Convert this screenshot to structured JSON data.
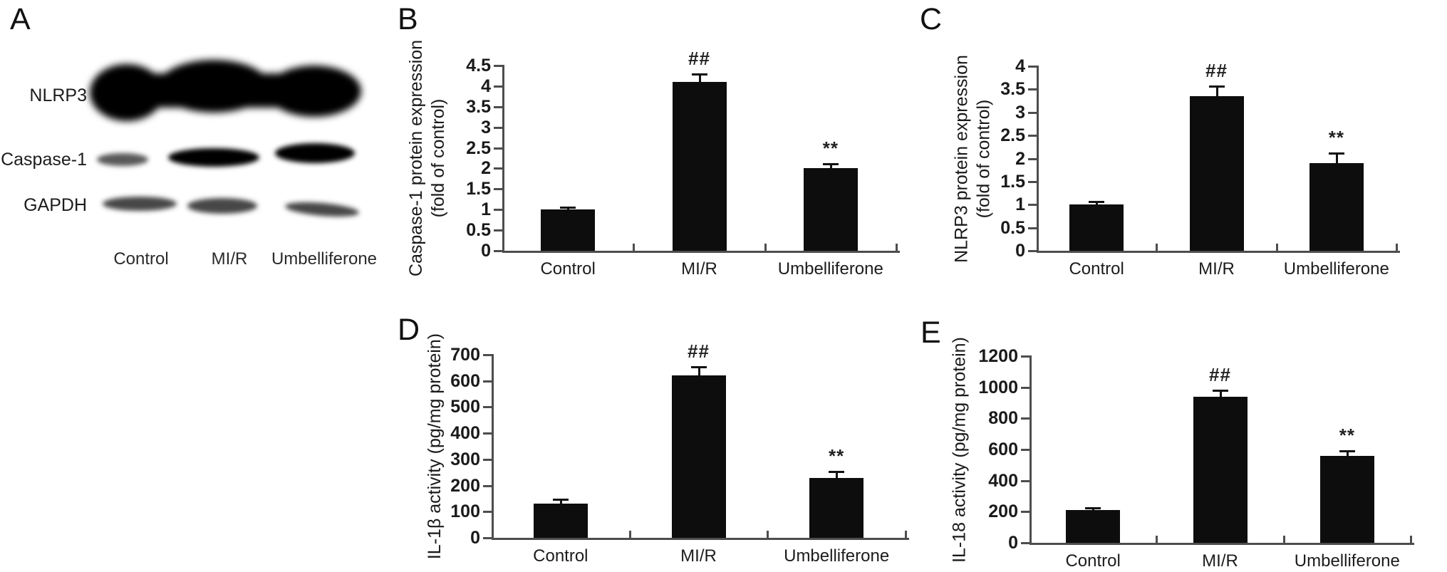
{
  "figure": {
    "background": "#ffffff",
    "panels": {
      "A": {
        "label": "A"
      },
      "B": {
        "label": "B"
      },
      "C": {
        "label": "C"
      },
      "D": {
        "label": "D"
      },
      "E": {
        "label": "E"
      }
    }
  },
  "colors": {
    "bar": "#0d0d0d",
    "axis": "#4d4d4d",
    "text": "#1a1a1a",
    "background": "#ffffff"
  },
  "western_blot": {
    "rows": [
      {
        "protein": "NLRP3",
        "lanes": [
          "strong",
          "strong",
          "strong"
        ]
      },
      {
        "protein": "Caspase-1",
        "lanes": [
          "weak",
          "strong",
          "strong"
        ]
      },
      {
        "protein": "GAPDH",
        "lanes": [
          "medium",
          "medium",
          "medium"
        ]
      }
    ],
    "lane_labels": [
      "Control",
      "MI/R",
      "Umbelliferone"
    ]
  },
  "chart_data": [
    {
      "panel": "B",
      "type": "bar",
      "title": "",
      "ylabel_lines": [
        "Caspase-1 protein expression",
        "(fold of control)"
      ],
      "categories": [
        "Control",
        "MI/R",
        "Umbelliferone"
      ],
      "values": [
        1.0,
        4.1,
        2.0
      ],
      "errors": [
        0.04,
        0.18,
        0.1
      ],
      "annotations": [
        "",
        "##",
        "**"
      ],
      "ylim": [
        0,
        4.5
      ],
      "yticks": [
        0,
        0.5,
        1,
        1.5,
        2,
        2.5,
        3,
        3.5,
        4,
        4.5
      ],
      "ytick_labels": [
        "0",
        "0.5",
        "1",
        "1.5",
        "2",
        "2.5",
        "3",
        "3.5",
        "4",
        "4.5"
      ],
      "grid": false,
      "legend": "none"
    },
    {
      "panel": "C",
      "type": "bar",
      "title": "",
      "ylabel_lines": [
        "NLRP3 protein expression",
        "(fold of control)"
      ],
      "categories": [
        "Control",
        "MI/R",
        "Umbelliferone"
      ],
      "values": [
        1.0,
        3.35,
        1.9
      ],
      "errors": [
        0.05,
        0.2,
        0.2
      ],
      "annotations": [
        "",
        "##",
        "**"
      ],
      "ylim": [
        0,
        4
      ],
      "yticks": [
        0,
        0.5,
        1,
        1.5,
        2,
        2.5,
        3,
        3.5,
        4
      ],
      "ytick_labels": [
        "0",
        "0.5",
        "1",
        "1.5",
        "2",
        "2.5",
        "3",
        "3.5",
        "4"
      ],
      "grid": false,
      "legend": "none"
    },
    {
      "panel": "D",
      "type": "bar",
      "title": "",
      "ylabel_lines": [
        "IL-1β activity (pg/mg protein)"
      ],
      "categories": [
        "Control",
        "MI/R",
        "Umbelliferone"
      ],
      "values": [
        130,
        620,
        230
      ],
      "errors": [
        15,
        30,
        20
      ],
      "annotations": [
        "",
        "##",
        "**"
      ],
      "ylim": [
        0,
        700
      ],
      "yticks": [
        0,
        100,
        200,
        300,
        400,
        500,
        600,
        700
      ],
      "ytick_labels": [
        "0",
        "100",
        "200",
        "300",
        "400",
        "500",
        "600",
        "700"
      ],
      "grid": false,
      "legend": "none"
    },
    {
      "panel": "E",
      "type": "bar",
      "title": "",
      "ylabel_lines": [
        "IL-18 activity (pg/mg protein)"
      ],
      "categories": [
        "Control",
        "MI/R",
        "Umbelliferone"
      ],
      "values": [
        210,
        940,
        560
      ],
      "errors": [
        12,
        35,
        25
      ],
      "annotations": [
        "",
        "##",
        "**"
      ],
      "ylim": [
        0,
        1200
      ],
      "yticks": [
        0,
        200,
        400,
        600,
        800,
        1000,
        1200
      ],
      "ytick_labels": [
        "0",
        "200",
        "400",
        "600",
        "800",
        "1000",
        "1200"
      ],
      "grid": false,
      "legend": "none"
    }
  ]
}
